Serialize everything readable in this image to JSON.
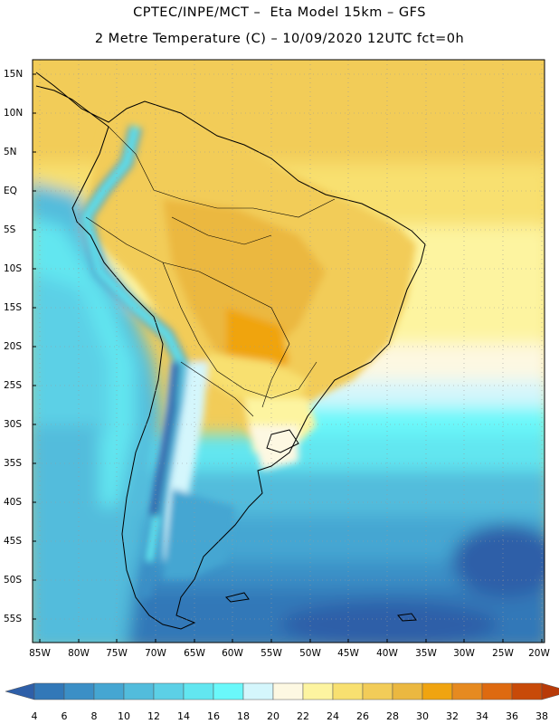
{
  "title": {
    "line1": "CPTEC/INPE/MCT –  Eta Model 15km – GFS",
    "line2": "2 Metre Temperature (C) – 10/09/2020 12UTC fct=0h"
  },
  "map": {
    "lat_labels": [
      "15N",
      "10N",
      "5N",
      "EQ",
      "5S",
      "10S",
      "15S",
      "20S",
      "25S",
      "30S",
      "35S",
      "40S",
      "45S",
      "50S",
      "55S"
    ],
    "lon_labels": [
      "85W",
      "80W",
      "75W",
      "70W",
      "65W",
      "60W",
      "55W",
      "50W",
      "45W",
      "40W",
      "35W",
      "30W",
      "25W",
      "20W"
    ]
  },
  "colorbar": {
    "labels": [
      "4",
      "6",
      "8",
      "10",
      "12",
      "14",
      "16",
      "18",
      "20",
      "22",
      "24",
      "26",
      "28",
      "30",
      "32",
      "34",
      "36",
      "38"
    ],
    "colors": [
      "#2e5fa8",
      "#3278b8",
      "#3b8fc6",
      "#45a6d2",
      "#52bcdc",
      "#5cd0e6",
      "#62e6f0",
      "#6af8fa",
      "#d4f6fc",
      "#fdf8e2",
      "#fdf4a0",
      "#f8e070",
      "#f2cc58",
      "#ebb840",
      "#f0a410",
      "#e68a20",
      "#de6a10",
      "#c84a08",
      "#b83a08"
    ]
  }
}
